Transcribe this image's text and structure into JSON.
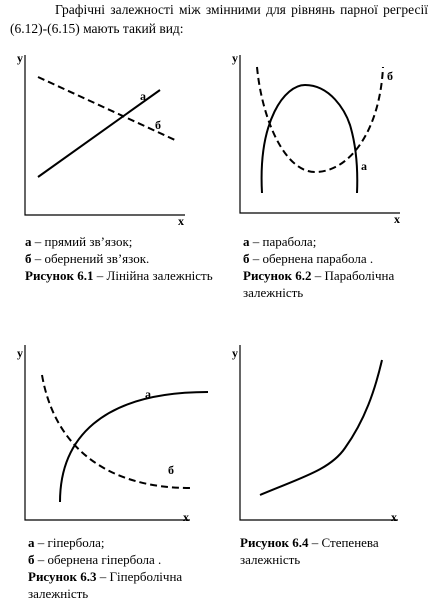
{
  "intro": "Графічні залежності між змінними для рівнянь парної регресії (6.12)-(6.15) мають такий вид:",
  "figures": [
    {
      "y_label": "y",
      "x_label": "x",
      "curve_labels": [
        "а",
        "б"
      ],
      "legend": [
        {
          "letter": "а",
          "text": "– прямий зв’язок;"
        },
        {
          "letter": "б",
          "text": "– обернений зв’язок."
        }
      ],
      "caption": {
        "label": "Рисунок 6.1",
        "text": "– Лінійна залежність"
      }
    },
    {
      "y_label": "y",
      "x_label": "x",
      "curve_labels": [
        "б",
        "а"
      ],
      "legend": [
        {
          "letter": "а",
          "text": "– парабола;"
        },
        {
          "letter": "б",
          "text": "– обернена парабола ."
        }
      ],
      "caption": {
        "label": "Рисунок 6.2",
        "text": "– Параболічна залежність"
      }
    },
    {
      "y_label": "y",
      "x_label": "x",
      "curve_labels": [
        "а",
        "б"
      ],
      "legend": [
        {
          "letter": "а",
          "text": "– гіпербола;"
        },
        {
          "letter": "б",
          "text": "– обернена гіпербола ."
        }
      ],
      "caption": {
        "label": "Рисунок 6.3",
        "text": "– Гіперболічна залежність"
      }
    },
    {
      "y_label": "y",
      "x_label": "x",
      "caption": {
        "label": "Рисунок 6.4",
        "text": "– Степенева залежність"
      }
    }
  ]
}
